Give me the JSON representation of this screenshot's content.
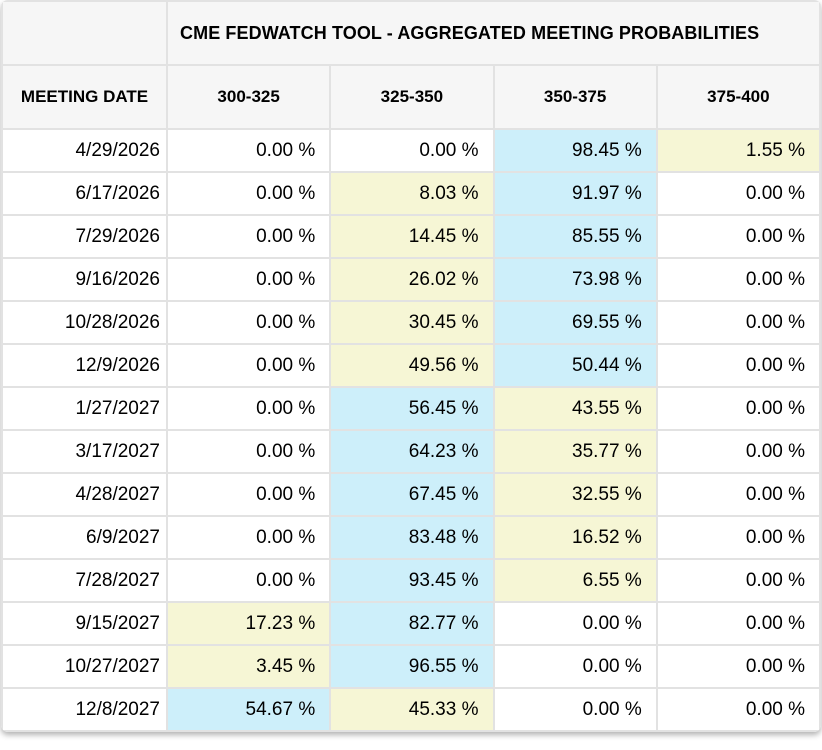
{
  "table": {
    "title": "CME FEDWATCH TOOL - AGGREGATED MEETING PROBABILITIES",
    "corner_label": "",
    "columns": [
      "MEETING DATE",
      "300-325",
      "325-350",
      "350-375",
      "375-400"
    ],
    "rows": [
      {
        "date": "4/29/2026",
        "cells": [
          {
            "value": "0.00 %",
            "highlight": "none"
          },
          {
            "value": "0.00 %",
            "highlight": "none"
          },
          {
            "value": "98.45 %",
            "highlight": "blue"
          },
          {
            "value": "1.55 %",
            "highlight": "yellow"
          }
        ]
      },
      {
        "date": "6/17/2026",
        "cells": [
          {
            "value": "0.00 %",
            "highlight": "none"
          },
          {
            "value": "8.03 %",
            "highlight": "yellow"
          },
          {
            "value": "91.97 %",
            "highlight": "blue"
          },
          {
            "value": "0.00 %",
            "highlight": "none"
          }
        ]
      },
      {
        "date": "7/29/2026",
        "cells": [
          {
            "value": "0.00 %",
            "highlight": "none"
          },
          {
            "value": "14.45 %",
            "highlight": "yellow"
          },
          {
            "value": "85.55 %",
            "highlight": "blue"
          },
          {
            "value": "0.00 %",
            "highlight": "none"
          }
        ]
      },
      {
        "date": "9/16/2026",
        "cells": [
          {
            "value": "0.00 %",
            "highlight": "none"
          },
          {
            "value": "26.02 %",
            "highlight": "yellow"
          },
          {
            "value": "73.98 %",
            "highlight": "blue"
          },
          {
            "value": "0.00 %",
            "highlight": "none"
          }
        ]
      },
      {
        "date": "10/28/2026",
        "cells": [
          {
            "value": "0.00 %",
            "highlight": "none"
          },
          {
            "value": "30.45 %",
            "highlight": "yellow"
          },
          {
            "value": "69.55 %",
            "highlight": "blue"
          },
          {
            "value": "0.00 %",
            "highlight": "none"
          }
        ]
      },
      {
        "date": "12/9/2026",
        "cells": [
          {
            "value": "0.00 %",
            "highlight": "none"
          },
          {
            "value": "49.56 %",
            "highlight": "yellow"
          },
          {
            "value": "50.44 %",
            "highlight": "blue"
          },
          {
            "value": "0.00 %",
            "highlight": "none"
          }
        ]
      },
      {
        "date": "1/27/2027",
        "cells": [
          {
            "value": "0.00 %",
            "highlight": "none"
          },
          {
            "value": "56.45 %",
            "highlight": "blue"
          },
          {
            "value": "43.55 %",
            "highlight": "yellow"
          },
          {
            "value": "0.00 %",
            "highlight": "none"
          }
        ]
      },
      {
        "date": "3/17/2027",
        "cells": [
          {
            "value": "0.00 %",
            "highlight": "none"
          },
          {
            "value": "64.23 %",
            "highlight": "blue"
          },
          {
            "value": "35.77 %",
            "highlight": "yellow"
          },
          {
            "value": "0.00 %",
            "highlight": "none"
          }
        ]
      },
      {
        "date": "4/28/2027",
        "cells": [
          {
            "value": "0.00 %",
            "highlight": "none"
          },
          {
            "value": "67.45 %",
            "highlight": "blue"
          },
          {
            "value": "32.55 %",
            "highlight": "yellow"
          },
          {
            "value": "0.00 %",
            "highlight": "none"
          }
        ]
      },
      {
        "date": "6/9/2027",
        "cells": [
          {
            "value": "0.00 %",
            "highlight": "none"
          },
          {
            "value": "83.48 %",
            "highlight": "blue"
          },
          {
            "value": "16.52 %",
            "highlight": "yellow"
          },
          {
            "value": "0.00 %",
            "highlight": "none"
          }
        ]
      },
      {
        "date": "7/28/2027",
        "cells": [
          {
            "value": "0.00 %",
            "highlight": "none"
          },
          {
            "value": "93.45 %",
            "highlight": "blue"
          },
          {
            "value": "6.55 %",
            "highlight": "yellow"
          },
          {
            "value": "0.00 %",
            "highlight": "none"
          }
        ]
      },
      {
        "date": "9/15/2027",
        "cells": [
          {
            "value": "17.23 %",
            "highlight": "yellow"
          },
          {
            "value": "82.77 %",
            "highlight": "blue"
          },
          {
            "value": "0.00 %",
            "highlight": "none"
          },
          {
            "value": "0.00 %",
            "highlight": "none"
          }
        ]
      },
      {
        "date": "10/27/2027",
        "cells": [
          {
            "value": "3.45 %",
            "highlight": "yellow"
          },
          {
            "value": "96.55 %",
            "highlight": "blue"
          },
          {
            "value": "0.00 %",
            "highlight": "none"
          },
          {
            "value": "0.00 %",
            "highlight": "none"
          }
        ]
      },
      {
        "date": "12/8/2027",
        "cells": [
          {
            "value": "54.67 %",
            "highlight": "blue"
          },
          {
            "value": "45.33 %",
            "highlight": "yellow"
          },
          {
            "value": "0.00 %",
            "highlight": "none"
          },
          {
            "value": "0.00 %",
            "highlight": "none"
          }
        ]
      }
    ],
    "colors": {
      "blue_highlight": "#cdeffa",
      "yellow_highlight": "#f6f6d5",
      "header_bg": "#f6f6f6",
      "border": "#e2e2e2",
      "text": "#000000"
    }
  },
  "chart_data": {
    "type": "table",
    "title": "CME FEDWATCH TOOL - AGGREGATED MEETING PROBABILITIES",
    "row_header": "MEETING DATE",
    "unit": "%",
    "categories": [
      "4/29/2026",
      "6/17/2026",
      "7/29/2026",
      "9/16/2026",
      "10/28/2026",
      "12/9/2026",
      "1/27/2027",
      "3/17/2027",
      "4/28/2027",
      "6/9/2027",
      "7/28/2027",
      "9/15/2027",
      "10/27/2027",
      "12/8/2027"
    ],
    "series": [
      {
        "name": "300-325",
        "values": [
          0.0,
          0.0,
          0.0,
          0.0,
          0.0,
          0.0,
          0.0,
          0.0,
          0.0,
          0.0,
          0.0,
          17.23,
          3.45,
          54.67
        ]
      },
      {
        "name": "325-350",
        "values": [
          0.0,
          8.03,
          14.45,
          26.02,
          30.45,
          49.56,
          56.45,
          64.23,
          67.45,
          83.48,
          93.45,
          82.77,
          96.55,
          45.33
        ]
      },
      {
        "name": "350-375",
        "values": [
          98.45,
          91.97,
          85.55,
          73.98,
          69.55,
          50.44,
          43.55,
          35.77,
          32.55,
          16.52,
          6.55,
          0.0,
          0.0,
          0.0
        ]
      },
      {
        "name": "375-400",
        "values": [
          1.55,
          0.0,
          0.0,
          0.0,
          0.0,
          0.0,
          0.0,
          0.0,
          0.0,
          0.0,
          0.0,
          0.0,
          0.0,
          0.0
        ]
      }
    ]
  }
}
